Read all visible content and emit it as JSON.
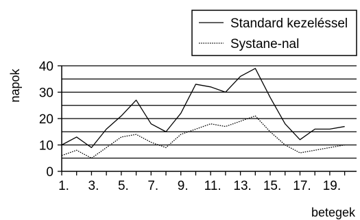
{
  "chart_data": {
    "type": "line",
    "title": "",
    "xlabel": "betegek",
    "ylabel": "napok",
    "x": [
      1,
      2,
      3,
      4,
      5,
      6,
      7,
      8,
      9,
      10,
      11,
      12,
      13,
      14,
      15,
      16,
      17,
      18,
      19,
      20
    ],
    "x_tick_labels": [
      "1.",
      "3.",
      "5.",
      "7.",
      "9.",
      "11.",
      "13.",
      "15.",
      "17.",
      "19."
    ],
    "x_tick_values": [
      1,
      3,
      5,
      7,
      9,
      11,
      13,
      15,
      17,
      19
    ],
    "y_ticks": [
      0,
      10,
      20,
      30,
      40
    ],
    "ylim": [
      0,
      40
    ],
    "grid": true,
    "grid_step": 5,
    "legend_position": "top-right",
    "series": [
      {
        "name": "Standard kezeléssel",
        "style": "solid",
        "color": "#000000",
        "values": [
          10,
          13,
          9,
          16,
          21,
          27,
          18,
          15,
          22,
          33,
          32,
          30,
          36,
          39,
          28,
          18,
          12,
          16,
          16,
          17
        ]
      },
      {
        "name": "Systane-nal",
        "style": "dotted",
        "color": "#000000",
        "values": [
          6,
          8,
          5,
          9,
          13,
          14,
          11,
          9,
          14,
          16,
          18,
          17,
          19,
          21,
          15,
          10,
          7,
          8,
          9,
          10
        ]
      }
    ]
  }
}
